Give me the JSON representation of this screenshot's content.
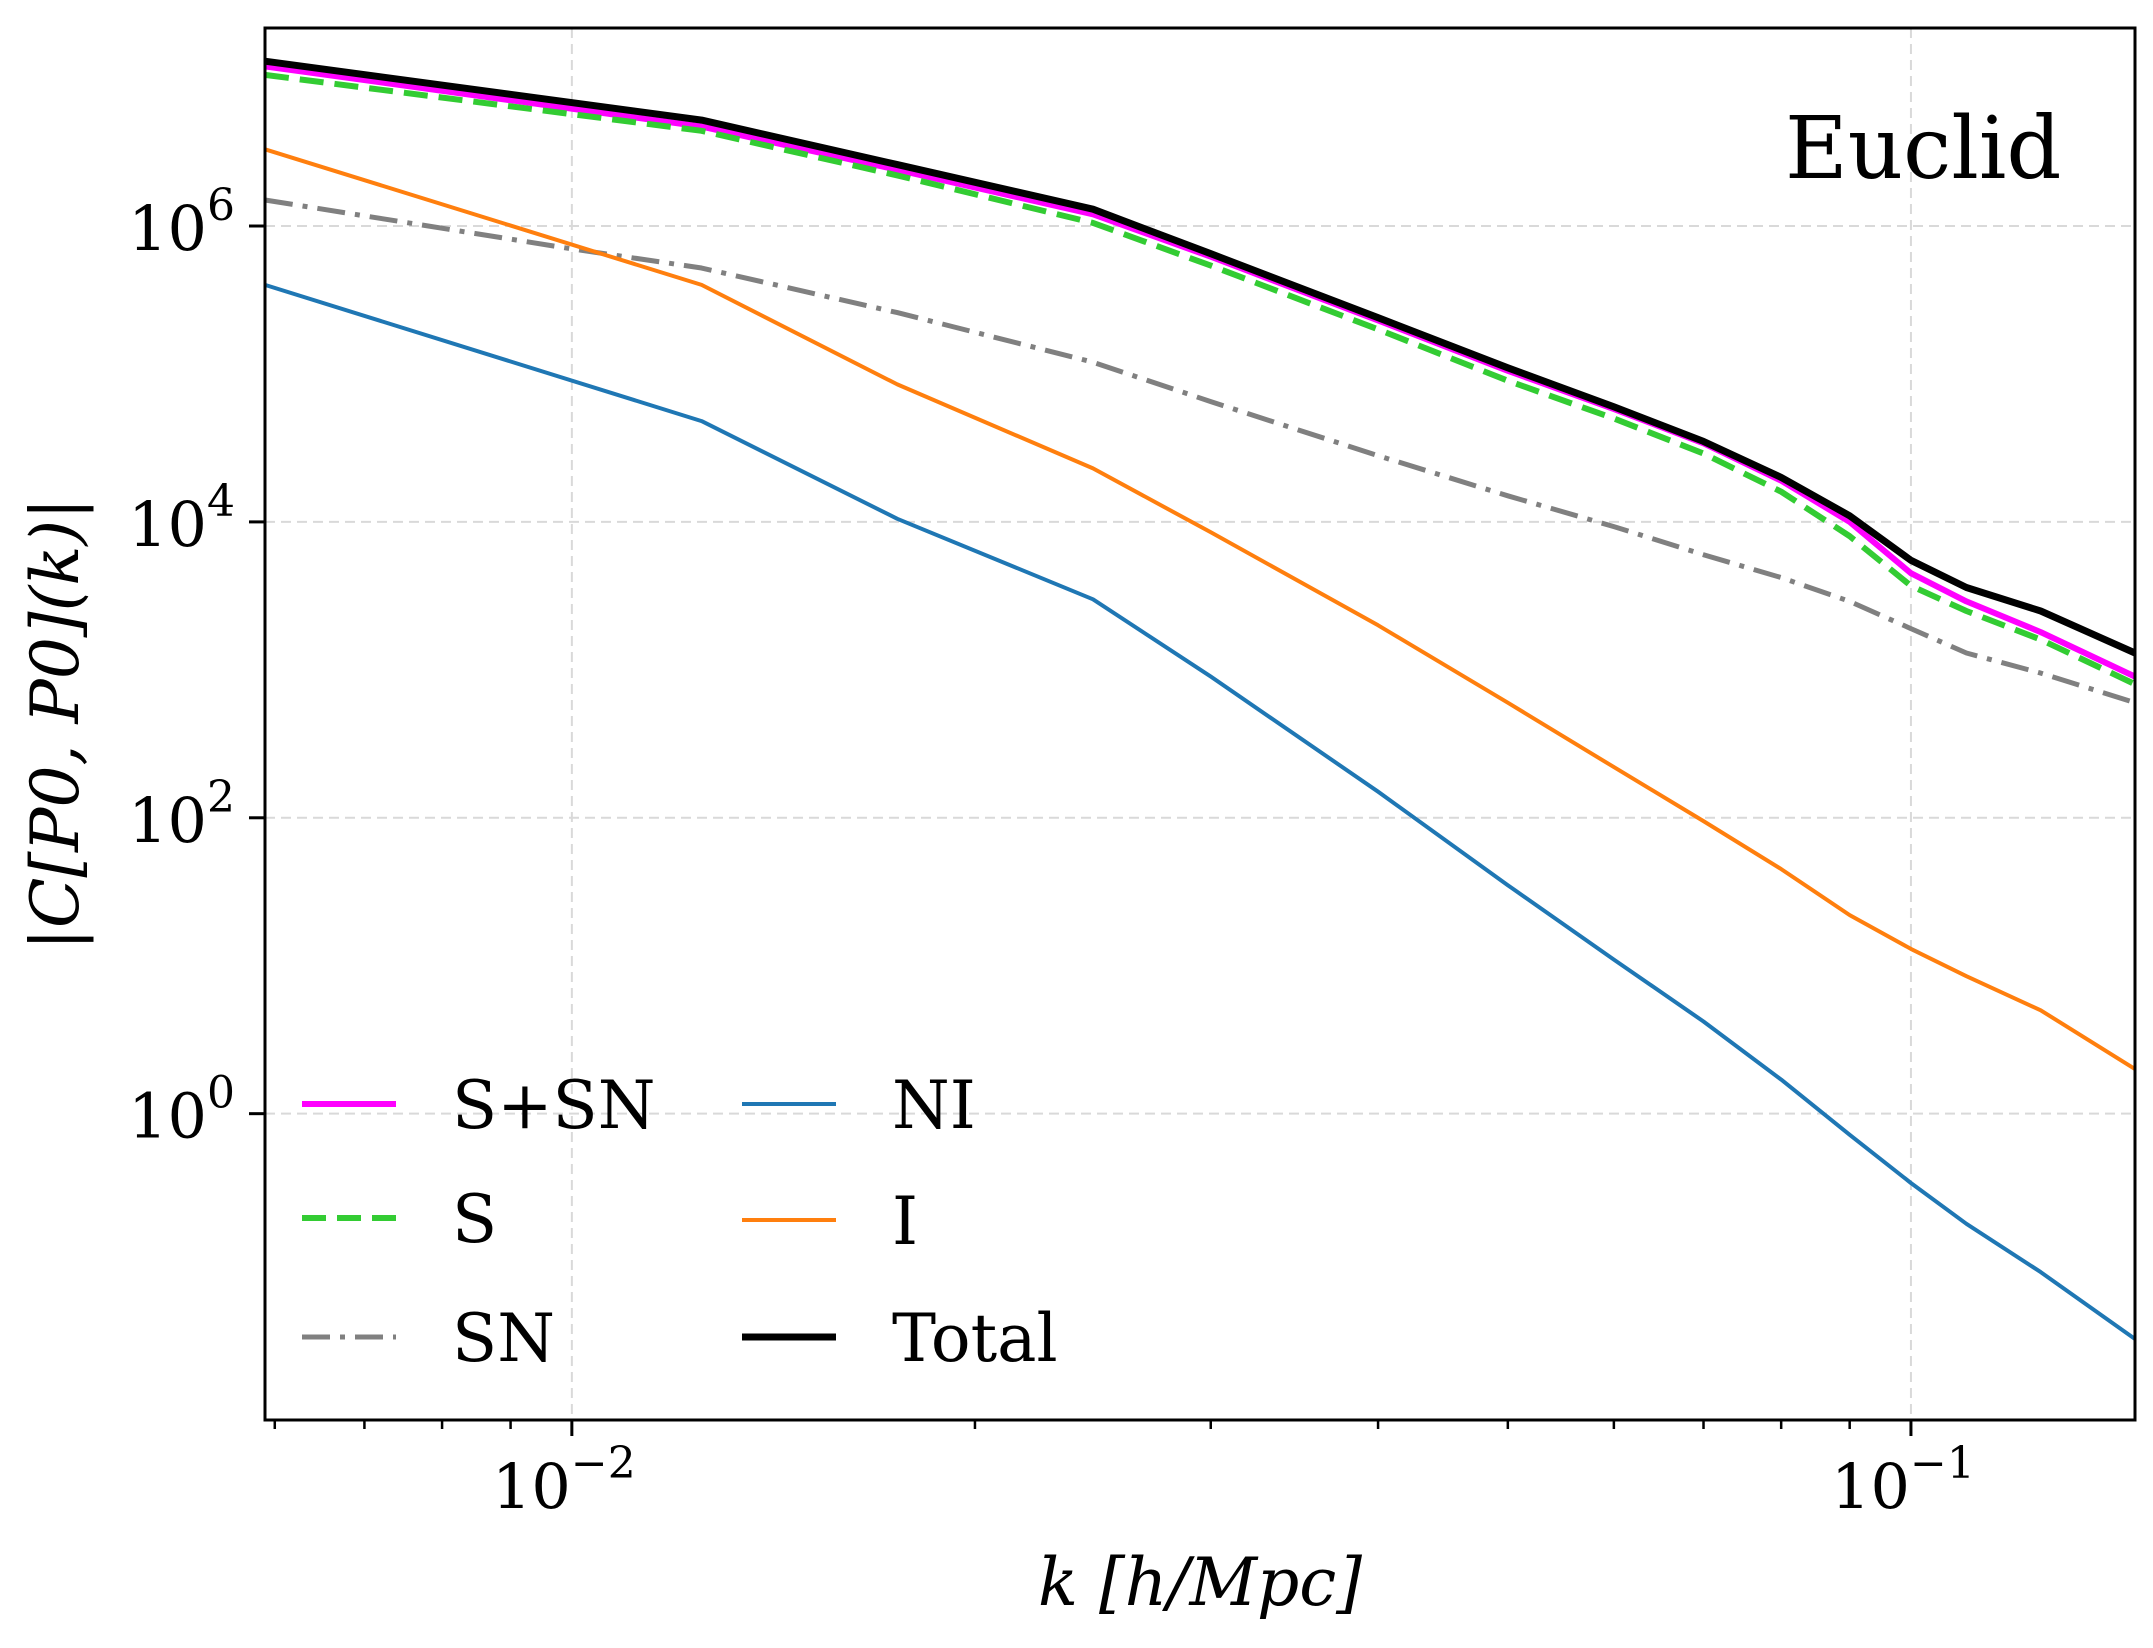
{
  "chart_data": {
    "type": "line",
    "title": "",
    "annotation": "Euclid",
    "xlabel": "k [h/Mpc]",
    "ylabel": "|C[P0, P0](k)|",
    "xscale": "log",
    "yscale": "log",
    "xlim": [
      0.0059,
      0.147
    ],
    "ylim": [
      0.0085,
      21800000
    ],
    "grid": true,
    "legend": {
      "position": "bottom-left",
      "columns": 2
    },
    "x_ticks": [
      {
        "base": "10",
        "exp": "−2",
        "value": 0.01
      },
      {
        "base": "10",
        "exp": "−1",
        "value": 0.1
      }
    ],
    "y_ticks": [
      {
        "base": "10",
        "exp": "0",
        "value": 1
      },
      {
        "base": "10",
        "exp": "2",
        "value": 100
      },
      {
        "base": "10",
        "exp": "4",
        "value": 10000
      },
      {
        "base": "10",
        "exp": "6",
        "value": 1000000
      }
    ],
    "series": [
      {
        "name": "S+SN",
        "color": "#ff00ff",
        "dash": "solid",
        "width": 6,
        "x": [
          0.0059,
          0.0125,
          0.0175,
          0.0245,
          0.03,
          0.04,
          0.05,
          0.06,
          0.07,
          0.08,
          0.09,
          0.1,
          0.11,
          0.125,
          0.147
        ],
        "y": [
          12000000,
          4700000,
          2400000,
          1200000,
          620000,
          230000,
          105000,
          58000,
          34000,
          19000,
          10000,
          4500,
          2900,
          1800,
          900
        ]
      },
      {
        "name": "S",
        "color": "#33cc33",
        "dash": "dashed",
        "width": 6,
        "x": [
          0.0059,
          0.0125,
          0.0175,
          0.0245,
          0.03,
          0.04,
          0.05,
          0.06,
          0.07,
          0.08,
          0.09,
          0.1,
          0.11,
          0.125,
          0.147
        ],
        "y": [
          10500000,
          4400000,
          2200000,
          1050000,
          540000,
          200000,
          90000,
          50000,
          29000,
          16000,
          8000,
          3700,
          2500,
          1600,
          800
        ]
      },
      {
        "name": "SN",
        "color": "#808080",
        "dash": "dashdot",
        "width": 5,
        "x": [
          0.0059,
          0.01,
          0.0125,
          0.0175,
          0.0245,
          0.03,
          0.04,
          0.05,
          0.06,
          0.07,
          0.08,
          0.09,
          0.1,
          0.11,
          0.125,
          0.147
        ],
        "y": [
          1500000,
          700000,
          520000,
          260000,
          120000,
          65000,
          28000,
          15000,
          9300,
          6000,
          4200,
          2900,
          1900,
          1300,
          950,
          600
        ]
      },
      {
        "name": "NI",
        "color": "#1f77b4",
        "dash": "solid",
        "width": 4,
        "x": [
          0.0059,
          0.0125,
          0.0175,
          0.0245,
          0.03,
          0.04,
          0.05,
          0.06,
          0.07,
          0.08,
          0.09,
          0.1,
          0.11,
          0.125,
          0.147
        ],
        "y": [
          400000,
          48000,
          10500,
          3000,
          900,
          150,
          35,
          11,
          4.2,
          1.7,
          0.72,
          0.34,
          0.18,
          0.085,
          0.03
        ]
      },
      {
        "name": "I",
        "color": "#ff7f0e",
        "dash": "solid",
        "width": 4,
        "x": [
          0.0059,
          0.0125,
          0.0175,
          0.0245,
          0.03,
          0.04,
          0.05,
          0.06,
          0.07,
          0.08,
          0.09,
          0.1,
          0.11,
          0.125,
          0.147
        ],
        "y": [
          3300000,
          400000,
          85000,
          23000,
          8500,
          2000,
          600,
          220,
          95,
          45,
          22,
          13,
          8.5,
          5,
          2
        ]
      },
      {
        "name": "Total",
        "color": "#000000",
        "dash": "solid",
        "width": 7,
        "x": [
          0.0059,
          0.0125,
          0.0175,
          0.0245,
          0.03,
          0.04,
          0.05,
          0.06,
          0.07,
          0.08,
          0.09,
          0.1,
          0.11,
          0.125,
          0.147
        ],
        "y": [
          13000000,
          5200000,
          2600000,
          1300000,
          650000,
          240000,
          110000,
          60000,
          35000,
          20000,
          11000,
          5500,
          3600,
          2500,
          1300
        ]
      }
    ]
  }
}
